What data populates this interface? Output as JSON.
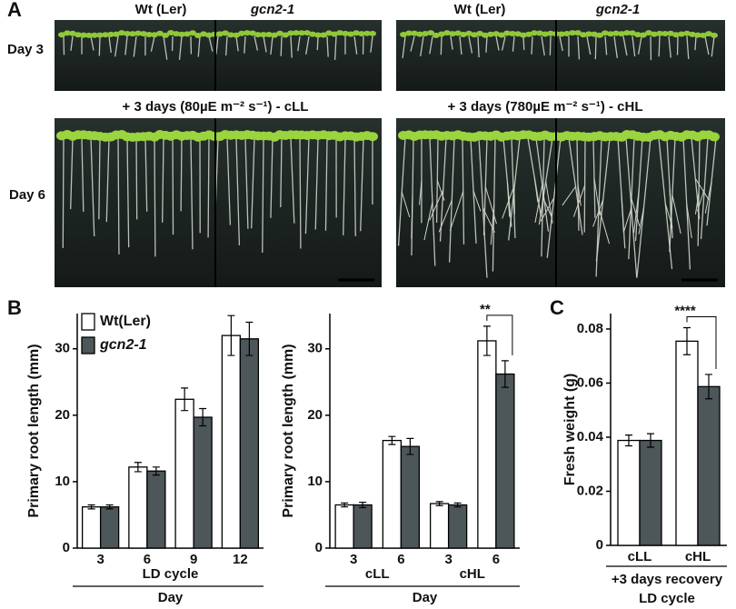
{
  "panel_a": {
    "label": "A",
    "columns": [
      "Wt (Ler)",
      "gcn2-1",
      "Wt (Ler)",
      "gcn2-1"
    ],
    "rows": [
      "Day 3",
      "Day 6"
    ],
    "conditions": [
      "+ 3 days (80µE m⁻² s⁻¹) - cLL",
      "+ 3 days (780µE m⁻² s⁻¹) - cHL"
    ]
  },
  "chart_data": [
    {
      "type": "bar",
      "panel": "B",
      "ylabel": "Primary root length (mm)",
      "categories": [
        "3",
        "6",
        "9",
        "12"
      ],
      "xlabel": [
        "LD cycle",
        "Day"
      ],
      "ylim": [
        0,
        35.3
      ],
      "yticks": [
        0,
        10,
        20,
        30
      ],
      "legend": true,
      "series": [
        {
          "name": "Wt(Ler)",
          "color": "#ffffff",
          "values": [
            6.2,
            12.2,
            22.4,
            32
          ],
          "errors": [
            0.3,
            0.7,
            1.7,
            3
          ]
        },
        {
          "name": "gcn2-1",
          "color": "#4d5658",
          "values": [
            6.2,
            11.6,
            19.7,
            31.5
          ],
          "errors": [
            0.3,
            0.6,
            1.3,
            2.5
          ]
        }
      ]
    },
    {
      "type": "bar",
      "ylabel": "Primary root length (mm)",
      "categories": [
        "3",
        "6",
        "3",
        "6"
      ],
      "group_labels": [
        "cLL",
        "cHL"
      ],
      "xlabel": [
        "Day"
      ],
      "ylim": [
        0,
        35.3
      ],
      "yticks": [
        0,
        10,
        20,
        30
      ],
      "legend": false,
      "annotations": [
        {
          "text": "**",
          "category": 3
        }
      ],
      "series": [
        {
          "name": "Wt(Ler)",
          "color": "#ffffff",
          "values": [
            6.5,
            16.2,
            6.7,
            31.2
          ],
          "errors": [
            0.3,
            0.6,
            0.3,
            2.2
          ]
        },
        {
          "name": "gcn2-1",
          "color": "#4d5658",
          "values": [
            6.5,
            15.3,
            6.5,
            26.2
          ],
          "errors": [
            0.4,
            1.2,
            0.3,
            2
          ]
        }
      ]
    },
    {
      "type": "bar",
      "panel": "C",
      "ylabel": "Fresh weight (g)",
      "categories": [
        "cLL",
        "cHL"
      ],
      "xlabel": [
        "+3 days recovery",
        "LD cycle"
      ],
      "ylim": [
        0,
        0.0857
      ],
      "yticks": [
        0,
        0.02,
        0.04,
        0.06,
        0.08
      ],
      "legend": false,
      "annotations": [
        {
          "text": "****",
          "category": 1
        }
      ],
      "series": [
        {
          "name": "Wt(Ler)",
          "color": "#ffffff",
          "values": [
            0.0388,
            0.0755
          ],
          "errors": [
            0.002,
            0.005
          ]
        },
        {
          "name": "gcn2-1",
          "color": "#4d5658",
          "values": [
            0.0388,
            0.0587
          ],
          "errors": [
            0.0025,
            0.0045
          ]
        }
      ]
    }
  ]
}
